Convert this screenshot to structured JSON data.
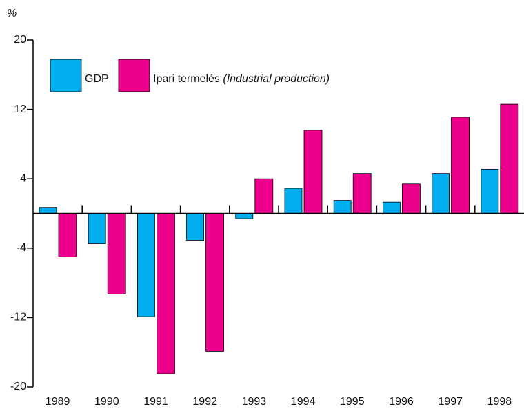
{
  "chart_data": {
    "type": "bar",
    "y_label": "%",
    "categories": [
      "1989",
      "1990",
      "1991",
      "1992",
      "1993",
      "1994",
      "1995",
      "1996",
      "1997",
      "1998"
    ],
    "series": [
      {
        "name": "GDP",
        "color": "#00aeef",
        "values": [
          0.7,
          -3.5,
          -11.9,
          -3.1,
          -0.6,
          2.9,
          1.5,
          1.3,
          4.6,
          5.1
        ]
      },
      {
        "name": "Ipari termelés (Industrial production)",
        "color": "#ec008c",
        "values": [
          -5.0,
          -9.3,
          -18.5,
          -15.9,
          4.0,
          9.6,
          4.6,
          3.4,
          11.1,
          12.6
        ]
      }
    ],
    "ylim": [
      -20,
      20
    ],
    "yticks": [
      -20,
      -12,
      -4,
      4,
      12,
      20
    ],
    "legend": "top-left"
  }
}
